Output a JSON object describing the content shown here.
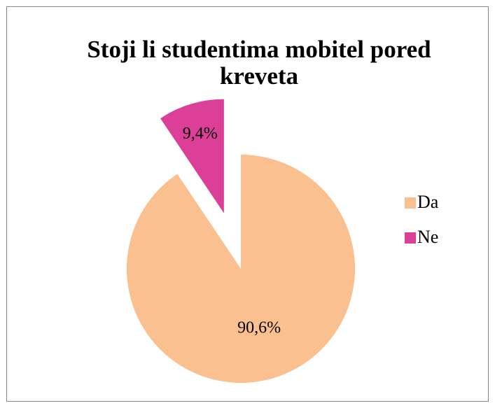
{
  "chart_data": {
    "type": "pie",
    "title": "Stoji li studentima mobitel pored kreveta",
    "categories": [
      "Da",
      "Ne"
    ],
    "values": [
      90.6,
      9.4
    ],
    "value_labels": [
      "90,6%",
      "9,4%"
    ],
    "colors": [
      "#fac090",
      "#dc3f97"
    ],
    "exploded": [
      false,
      true
    ],
    "legend": "right"
  }
}
